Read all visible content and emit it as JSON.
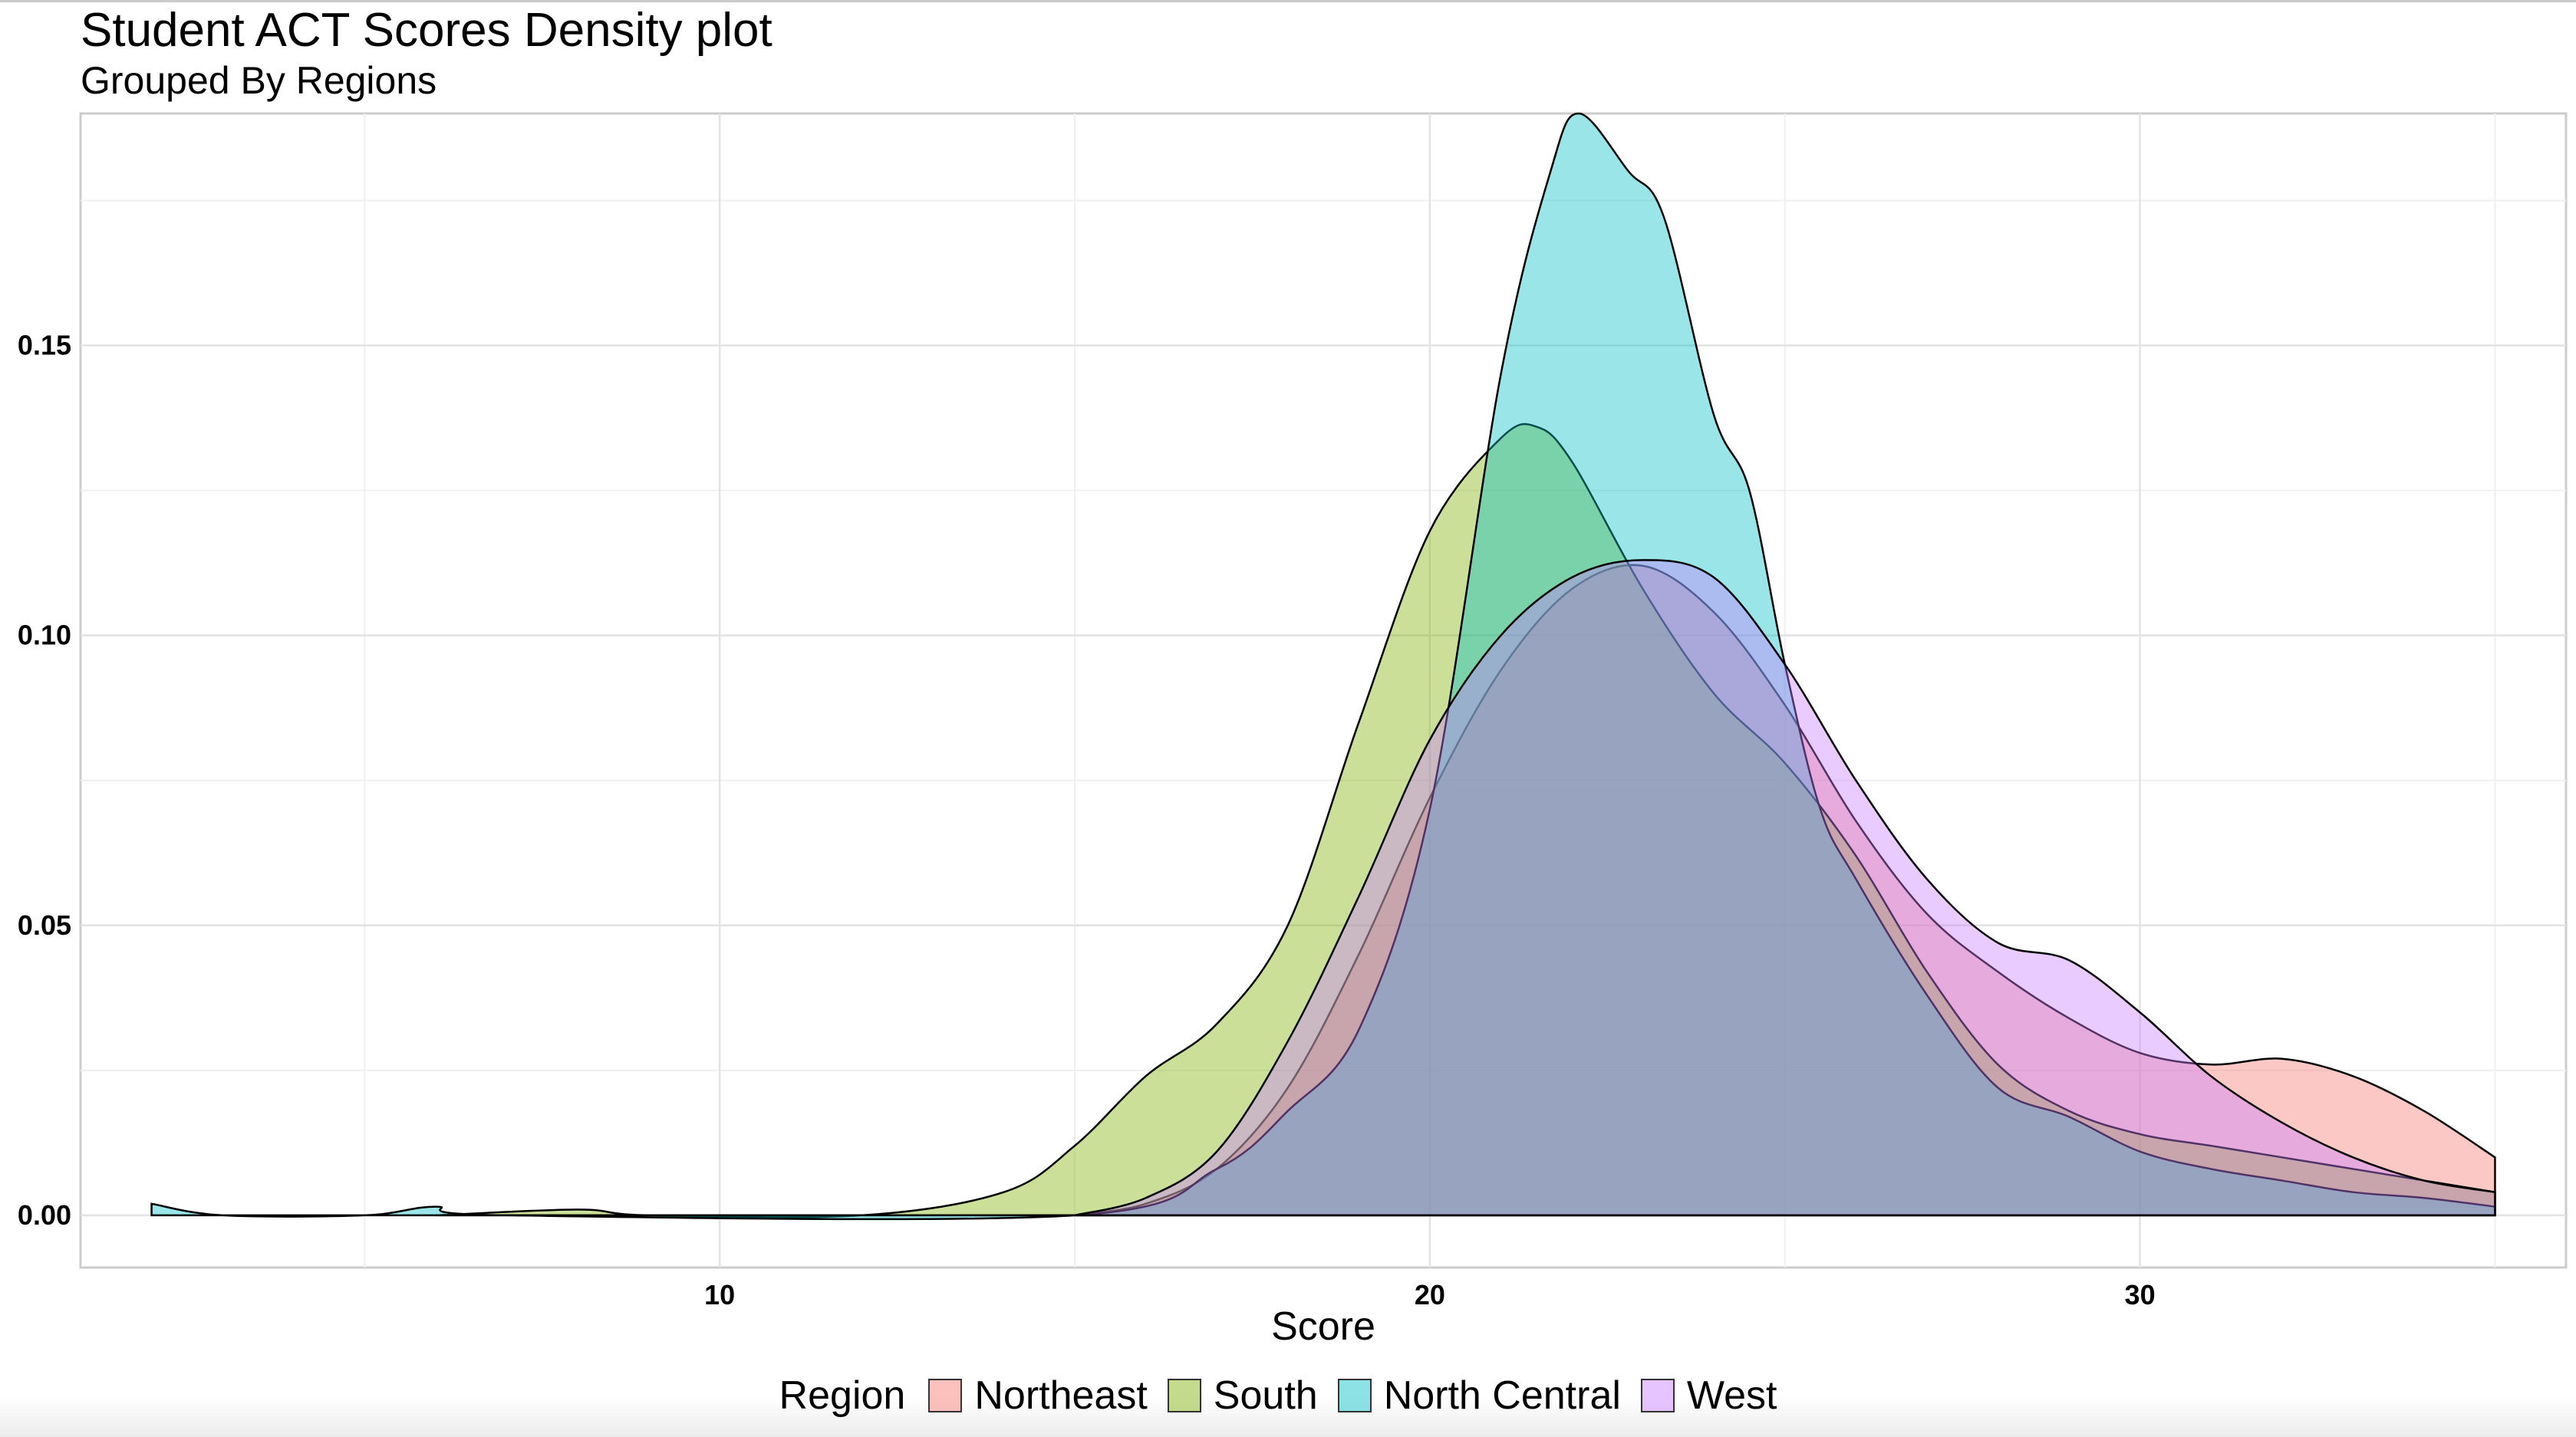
{
  "chart_data": {
    "type": "area",
    "title": "Student ACT Scores Density plot",
    "subtitle": "Grouped By Regions",
    "xlabel": "Score",
    "ylabel": "",
    "xlim": [
      1,
      36
    ],
    "ylim": [
      -0.009,
      0.19
    ],
    "x_ticks": [
      10,
      20,
      30
    ],
    "y_ticks": [
      0.0,
      0.05,
      0.1,
      0.15
    ],
    "y_tick_labels": [
      "0.00",
      "0.05",
      "0.10",
      "0.15"
    ],
    "grid": true,
    "legend": {
      "title": "Region",
      "placement": "bottom"
    },
    "series": [
      {
        "name": "Northeast",
        "color": "#F8766D",
        "points": [
          [
            15,
            0.0
          ],
          [
            16,
            0.002
          ],
          [
            17,
            0.008
          ],
          [
            18,
            0.022
          ],
          [
            19,
            0.045
          ],
          [
            20,
            0.072
          ],
          [
            21,
            0.094
          ],
          [
            22,
            0.108
          ],
          [
            23,
            0.112
          ],
          [
            24,
            0.104
          ],
          [
            25,
            0.088
          ],
          [
            26,
            0.068
          ],
          [
            27,
            0.052
          ],
          [
            28,
            0.042
          ],
          [
            29,
            0.034
          ],
          [
            30,
            0.028
          ],
          [
            31,
            0.026
          ],
          [
            32,
            0.027
          ],
          [
            33,
            0.024
          ],
          [
            34,
            0.018
          ],
          [
            35,
            0.01
          ]
        ]
      },
      {
        "name": "South",
        "color": "#7CAE00",
        "points": [
          [
            6,
            0.0
          ],
          [
            8,
            0.001
          ],
          [
            9,
            0.0
          ],
          [
            12,
            0.0
          ],
          [
            14,
            0.004
          ],
          [
            15,
            0.012
          ],
          [
            16,
            0.024
          ],
          [
            17,
            0.033
          ],
          [
            18,
            0.05
          ],
          [
            19,
            0.085
          ],
          [
            20,
            0.118
          ],
          [
            21,
            0.134
          ],
          [
            21.5,
            0.136
          ],
          [
            22,
            0.13
          ],
          [
            23,
            0.108
          ],
          [
            24,
            0.09
          ],
          [
            25,
            0.078
          ],
          [
            26,
            0.062
          ],
          [
            27,
            0.042
          ],
          [
            28,
            0.026
          ],
          [
            29,
            0.018
          ],
          [
            30,
            0.014
          ],
          [
            31,
            0.012
          ],
          [
            32,
            0.01
          ],
          [
            33,
            0.008
          ],
          [
            34,
            0.006
          ],
          [
            35,
            0.004
          ]
        ]
      },
      {
        "name": "North Central",
        "color": "#00BFC4",
        "points": [
          [
            2,
            0.002
          ],
          [
            3,
            0.0
          ],
          [
            5,
            0.0
          ],
          [
            6,
            0.0015
          ],
          [
            7,
            0.0
          ],
          [
            15,
            0.0
          ],
          [
            17,
            0.008
          ],
          [
            18,
            0.018
          ],
          [
            19,
            0.032
          ],
          [
            20,
            0.07
          ],
          [
            21,
            0.145
          ],
          [
            21.7,
            0.18
          ],
          [
            22.1,
            0.19
          ],
          [
            22.8,
            0.18
          ],
          [
            23.3,
            0.172
          ],
          [
            24,
            0.138
          ],
          [
            24.5,
            0.125
          ],
          [
            25,
            0.095
          ],
          [
            25.5,
            0.07
          ],
          [
            26,
            0.058
          ],
          [
            27,
            0.038
          ],
          [
            28,
            0.022
          ],
          [
            29,
            0.017
          ],
          [
            30,
            0.011
          ],
          [
            31,
            0.008
          ],
          [
            32,
            0.006
          ],
          [
            33,
            0.004
          ],
          [
            34,
            0.003
          ],
          [
            35,
            0.0015
          ]
        ]
      },
      {
        "name": "West",
        "color": "#C77CFF",
        "points": [
          [
            15,
            0.0
          ],
          [
            16,
            0.003
          ],
          [
            17,
            0.011
          ],
          [
            18,
            0.03
          ],
          [
            19,
            0.055
          ],
          [
            20,
            0.082
          ],
          [
            21,
            0.1
          ],
          [
            22,
            0.11
          ],
          [
            23,
            0.113
          ],
          [
            24,
            0.11
          ],
          [
            25,
            0.095
          ],
          [
            26,
            0.075
          ],
          [
            27,
            0.058
          ],
          [
            28,
            0.047
          ],
          [
            29,
            0.044
          ],
          [
            30,
            0.035
          ],
          [
            31,
            0.024
          ],
          [
            32,
            0.016
          ],
          [
            33,
            0.01
          ],
          [
            34,
            0.006
          ],
          [
            35,
            0.004
          ]
        ]
      }
    ]
  }
}
